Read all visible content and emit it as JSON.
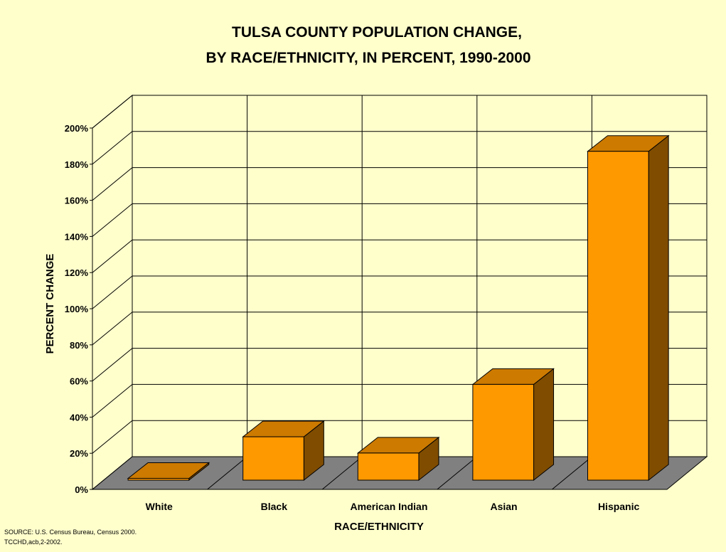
{
  "chart_data": {
    "type": "bar",
    "title_lines": [
      "TULSA COUNTY POPULATION CHANGE,",
      "BY RACE/ETHNICITY, IN PERCENT, 1990-2000"
    ],
    "xlabel": "RACE/ETHNICITY",
    "ylabel": "PERCENT CHANGE",
    "categories": [
      "White",
      "Black",
      "American Indian",
      "Asian",
      "Hispanic"
    ],
    "values": [
      1,
      24,
      15,
      53,
      182
    ],
    "ylim": [
      0,
      200
    ],
    "yticks": [
      0,
      20,
      40,
      60,
      80,
      100,
      120,
      140,
      160,
      180,
      200
    ],
    "ytick_labels": [
      "0%",
      "20%",
      "40%",
      "60%",
      "80%",
      "100%",
      "120%",
      "140%",
      "160%",
      "180%",
      "200%"
    ],
    "grid": true,
    "bar_style": "3d",
    "colors": {
      "background": "#ffffcc",
      "bar_front": "#ff9900",
      "bar_top": "#cc7a00",
      "bar_side": "#7f4c00",
      "floor": "#808080",
      "grid": "#000000"
    }
  },
  "source": {
    "line1": "SOURCE:  U.S. Census Bureau, Census 2000.",
    "line2": "TCCHD,acb,2-2002."
  }
}
